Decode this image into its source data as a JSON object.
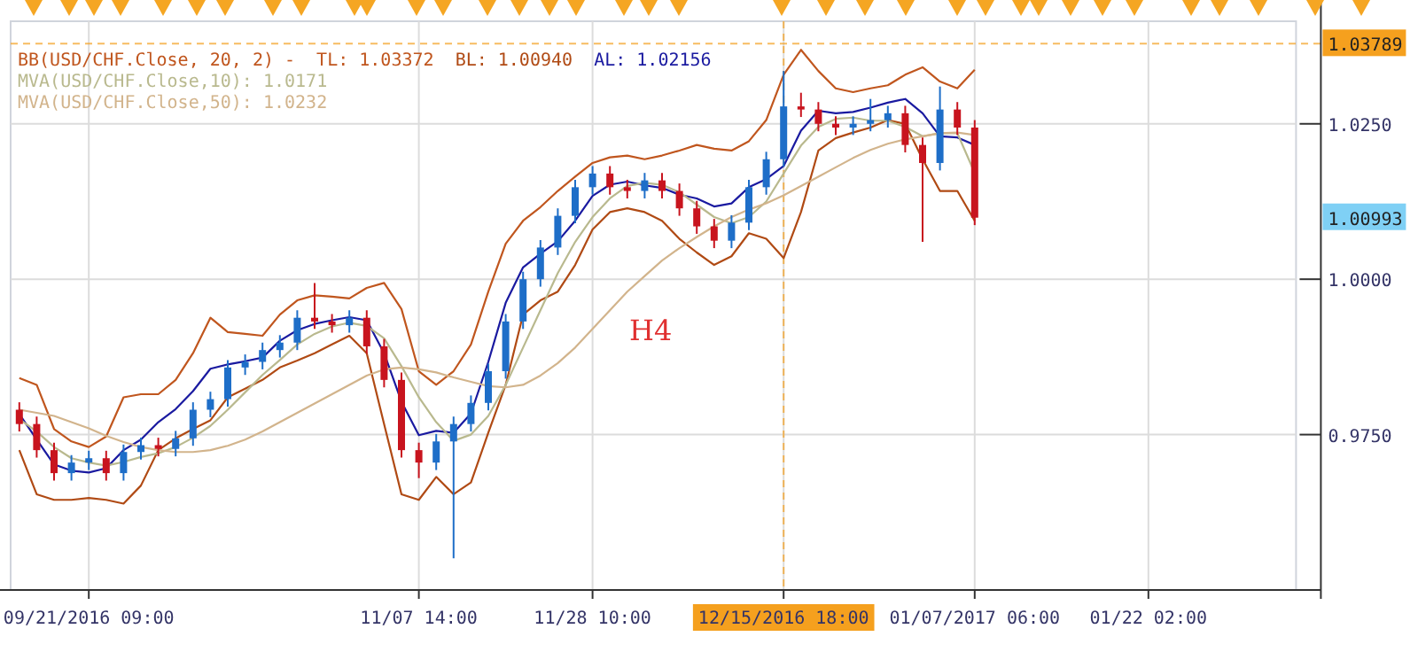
{
  "chart_data": {
    "type": "candlestick",
    "legend_title": "BB(USD/CHF.Close, 20, 2) -",
    "legend": "top left",
    "grid": true,
    "annotations": [
      "H4",
      "1.00993"
    ],
    "categories": [
      null,
      null,
      null,
      null,
      "09/21/2016 09:00",
      null,
      null,
      null,
      null,
      null,
      null,
      null,
      null,
      null,
      null,
      null,
      null,
      null,
      null,
      null,
      null,
      null,
      null,
      "11/07 14:00",
      null,
      null,
      null,
      null,
      null,
      null,
      null,
      null,
      null,
      "11/28 10:00",
      null,
      null,
      null,
      null,
      null,
      null,
      null,
      null,
      null,
      null,
      "12/15/2016 18:00",
      null,
      null,
      null,
      null,
      null,
      null,
      null,
      null,
      null,
      null,
      "01/07/2017 06:00",
      null,
      null,
      null,
      null,
      null,
      null,
      null,
      null,
      null,
      "01/22 02:00",
      null,
      null,
      null,
      null,
      null,
      null,
      null,
      null
    ],
    "ylim": [
      0.95,
      1.0415
    ],
    "yticks": [
      {
        "value": 0.975,
        "label": "0.9750"
      },
      {
        "value": 1,
        "label": "1.0000"
      },
      {
        "value": 1.025,
        "label": "1.0250"
      }
    ],
    "ref_lines": [
      {
        "axis": "x",
        "value": "12/15/2016 18:00",
        "color": "#f5a01e",
        "line_style": "dashed"
      },
      {
        "axis": "y",
        "value": 1.03789,
        "label": "1.03789",
        "color": "#f5a01e",
        "line_style": "dashed"
      }
    ],
    "series": [
      {
        "type": "candlestick",
        "ohlc": [
          [
            0.979,
            0.9802,
            0.9755,
            0.9767
          ],
          [
            0.9767,
            0.9779,
            0.9713,
            0.9725
          ],
          [
            0.9725,
            0.9737,
            0.9676,
            0.9688
          ],
          [
            0.9688,
            0.9717,
            0.9676,
            0.9705
          ],
          [
            0.9705,
            0.9724,
            0.9693,
            0.9712
          ],
          [
            0.9712,
            0.9724,
            0.9676,
            0.9688
          ],
          [
            0.9688,
            0.9734,
            0.9676,
            0.9722
          ],
          [
            0.9722,
            0.9745,
            0.971,
            0.9733
          ],
          [
            0.9733,
            0.9745,
            0.9715,
            0.9727
          ],
          [
            0.9727,
            0.9756,
            0.9715,
            0.9744
          ],
          [
            0.9744,
            0.9802,
            0.9732,
            0.979
          ],
          [
            0.979,
            0.9819,
            0.9778,
            0.9807
          ],
          [
            0.9807,
            0.987,
            0.9795,
            0.9858
          ],
          [
            0.9858,
            0.9879,
            0.9846,
            0.9867
          ],
          [
            0.9867,
            0.9898,
            0.9855,
            0.9886
          ],
          [
            0.9886,
            0.991,
            0.9874,
            0.9898
          ],
          [
            0.9898,
            0.995,
            0.9886,
            0.9938
          ],
          [
            0.9938,
            0.9994,
            0.992,
            0.9932
          ],
          [
            0.9932,
            0.9944,
            0.9914,
            0.9926
          ],
          [
            0.9926,
            0.995,
            0.9914,
            0.9938
          ],
          [
            0.9938,
            0.995,
            0.988,
            0.9892
          ],
          [
            0.9892,
            0.9904,
            0.9826,
            0.9838
          ],
          [
            0.9838,
            0.985,
            0.9713,
            0.9725
          ],
          [
            0.9725,
            0.9737,
            0.968,
            0.9705
          ],
          [
            0.9705,
            0.9751,
            0.9693,
            0.9739
          ],
          [
            0.9739,
            0.9779,
            0.9551,
            0.9767
          ],
          [
            0.9767,
            0.9813,
            0.9755,
            0.9801
          ],
          [
            0.9801,
            0.9864,
            0.9789,
            0.9852
          ],
          [
            0.9852,
            0.9944,
            0.984,
            0.9932
          ],
          [
            0.9932,
            1.0012,
            0.992,
            1.0
          ],
          [
            1.0,
            1.0063,
            0.9988,
            1.0051
          ],
          [
            1.0051,
            1.0114,
            1.0039,
            1.0102
          ],
          [
            1.0102,
            1.016,
            1.009,
            1.0148
          ],
          [
            1.0148,
            1.0182,
            1.0136,
            1.017
          ],
          [
            1.017,
            1.0182,
            1.0136,
            1.0148
          ],
          [
            1.0148,
            1.016,
            1.013,
            1.0142
          ],
          [
            1.0142,
            1.0171,
            1.013,
            1.0159
          ],
          [
            1.0159,
            1.0171,
            1.013,
            1.0142
          ],
          [
            1.0142,
            1.0154,
            1.0102,
            1.0114
          ],
          [
            1.0114,
            1.0126,
            1.0073,
            1.0085
          ],
          [
            1.0085,
            1.0097,
            1.005,
            1.0062
          ],
          [
            1.0062,
            1.0103,
            1.005,
            1.0091
          ],
          [
            1.0091,
            1.016,
            1.0079,
            1.0148
          ],
          [
            1.0148,
            1.0205,
            1.0136,
            1.0193
          ],
          [
            1.0193,
            1.0335,
            1.0181,
            1.0278
          ],
          [
            1.0278,
            1.03,
            1.0261,
            1.0273
          ],
          [
            1.0273,
            1.0285,
            1.0238,
            1.025
          ],
          [
            1.025,
            1.0262,
            1.0232,
            1.0244
          ],
          [
            1.0244,
            1.0262,
            1.0232,
            1.025
          ],
          [
            1.025,
            1.029,
            1.0238,
            1.0256
          ],
          [
            1.0256,
            1.0279,
            1.0244,
            1.0267
          ],
          [
            1.0267,
            1.0279,
            1.0204,
            1.0216
          ],
          [
            1.0216,
            1.0228,
            1.006,
            1.0187
          ],
          [
            1.0187,
            1.031,
            1.0175,
            1.0273
          ],
          [
            1.0273,
            1.0285,
            1.0232,
            1.0244
          ],
          [
            1.0244,
            1.0256,
            1.0087,
            1.0099
          ],
          null,
          null,
          null,
          null,
          null,
          null,
          null,
          null,
          null,
          null,
          null,
          null,
          null,
          null,
          null,
          null,
          null,
          null
        ],
        "colors": [
          "#c8141e",
          "#c8141e",
          "#c8141e",
          "#1e6ec8",
          "#1e6ec8",
          "#c8141e",
          "#1e6ec8",
          "#1e6ec8",
          "#c8141e",
          "#1e6ec8",
          "#1e6ec8",
          "#1e6ec8",
          "#1e6ec8",
          "#1e6ec8",
          "#1e6ec8",
          "#1e6ec8",
          "#1e6ec8",
          "#c8141e",
          "#c8141e",
          "#1e6ec8",
          "#c8141e",
          "#c8141e",
          "#c8141e",
          "#c8141e",
          "#1e6ec8",
          "#1e6ec8",
          "#1e6ec8",
          "#1e6ec8",
          "#1e6ec8",
          "#1e6ec8",
          "#1e6ec8",
          "#1e6ec8",
          "#1e6ec8",
          "#1e6ec8",
          "#c8141e",
          "#c8141e",
          "#1e6ec8",
          "#c8141e",
          "#c8141e",
          "#c8141e",
          "#c8141e",
          "#1e6ec8",
          "#1e6ec8",
          "#1e6ec8",
          "#1e6ec8",
          "#c8141e",
          "#c8141e",
          "#c8141e",
          "#1e6ec8",
          "#1e6ec8",
          "#1e6ec8",
          "#c8141e",
          "#c8141e",
          "#1e6ec8",
          "#c8141e",
          "#c8141e",
          null,
          null,
          null,
          null,
          null,
          null,
          null,
          null,
          null,
          null,
          null,
          null,
          null,
          null,
          null,
          null,
          null,
          null
        ]
      },
      {
        "type": "line",
        "name": "TL: 1.03372",
        "color": "#c0561e",
        "values": [
          0.9841,
          0.983,
          0.9759,
          0.9739,
          0.973,
          0.9747,
          0.981,
          0.9815,
          0.9815,
          0.9838,
          0.9881,
          0.9938,
          0.9915,
          0.9912,
          0.9909,
          0.9943,
          0.9966,
          0.9974,
          0.9972,
          0.9969,
          0.9986,
          0.9994,
          0.9952,
          0.9852,
          0.983,
          0.9852,
          0.9895,
          0.998,
          1.0057,
          1.0094,
          1.0116,
          1.0142,
          1.0165,
          1.0187,
          1.0196,
          1.0199,
          1.0193,
          1.0199,
          1.0207,
          1.0216,
          1.021,
          1.0207,
          1.0222,
          1.0256,
          1.0329,
          1.0369,
          1.0335,
          1.0307,
          1.0301,
          1.0307,
          1.0312,
          1.0329,
          1.0341,
          1.0318,
          1.0307,
          1.0337,
          null,
          null,
          null,
          null,
          null,
          null,
          null,
          null,
          null,
          null,
          null,
          null,
          null,
          null,
          null,
          null,
          null,
          null
        ]
      },
      {
        "type": "line",
        "name": "BL: 1.00940",
        "color": "#b04a14",
        "values": [
          0.9725,
          0.9654,
          0.9645,
          0.9645,
          0.9648,
          0.9645,
          0.9639,
          0.9668,
          0.9725,
          0.9744,
          0.9759,
          0.9773,
          0.981,
          0.9824,
          0.9838,
          0.9858,
          0.9869,
          0.9881,
          0.9895,
          0.9909,
          0.9881,
          0.9767,
          0.9654,
          0.9645,
          0.9682,
          0.9654,
          0.9673,
          0.9753,
          0.983,
          0.9943,
          0.9966,
          0.998,
          1.0023,
          1.008,
          1.0108,
          1.0114,
          1.0108,
          1.0094,
          1.0065,
          1.0043,
          1.0023,
          1.0037,
          1.0074,
          1.0065,
          1.0034,
          1.0108,
          1.0207,
          1.0227,
          1.0236,
          1.0244,
          1.0256,
          1.025,
          1.0193,
          1.0142,
          1.0142,
          1.0094,
          null,
          null,
          null,
          null,
          null,
          null,
          null,
          null,
          null,
          null,
          null,
          null,
          null,
          null,
          null,
          null,
          null,
          null
        ]
      },
      {
        "type": "line",
        "name": "AL: 1.02156",
        "color": "#1a1aa0",
        "values": [
          0.9783,
          0.9742,
          0.9702,
          0.9692,
          0.9689,
          0.9696,
          0.9725,
          0.9742,
          0.977,
          0.9791,
          0.982,
          0.9856,
          0.9863,
          0.9868,
          0.9874,
          0.9901,
          0.9918,
          0.9928,
          0.9934,
          0.9939,
          0.9934,
          0.9881,
          0.9803,
          0.9749,
          0.9756,
          0.9753,
          0.9784,
          0.9867,
          0.9962,
          1.0019,
          1.0041,
          1.0061,
          1.0094,
          1.0134,
          1.0152,
          1.0157,
          1.0151,
          1.0147,
          1.0136,
          1.013,
          1.0117,
          1.0122,
          1.0148,
          1.0161,
          1.0182,
          1.0239,
          1.0271,
          1.0267,
          1.0269,
          1.0276,
          1.0284,
          1.029,
          1.0267,
          1.023,
          1.0228,
          1.0216,
          null,
          null,
          null,
          null,
          null,
          null,
          null,
          null,
          null,
          null,
          null,
          null,
          null,
          null,
          null,
          null,
          null,
          null
        ]
      },
      {
        "type": "line",
        "name": "MVA(USD/CHF.Close,10): 1.0171",
        "color": "#b9b98e",
        "values": [
          0.9775,
          0.9755,
          0.973,
          0.9712,
          0.9705,
          0.97,
          0.9706,
          0.9714,
          0.972,
          0.973,
          0.9745,
          0.9764,
          0.979,
          0.9818,
          0.9846,
          0.987,
          0.9895,
          0.9912,
          0.9924,
          0.993,
          0.9925,
          0.9905,
          0.986,
          0.981,
          0.977,
          0.974,
          0.975,
          0.978,
          0.983,
          0.989,
          0.995,
          1.001,
          1.006,
          1.01,
          1.013,
          1.015,
          1.0155,
          1.0152,
          1.014,
          1.012,
          1.01,
          1.009,
          1.01,
          1.0125,
          1.017,
          1.0215,
          1.0245,
          1.0258,
          1.026,
          1.0255,
          1.0255,
          1.0245,
          1.023,
          1.0235,
          1.0235,
          1.0171,
          null,
          null,
          null,
          null,
          null,
          null,
          null,
          null,
          null,
          null,
          null,
          null,
          null,
          null,
          null,
          null,
          null,
          null
        ]
      },
      {
        "type": "line",
        "name": "MVA(USD/CHF.Close,50): 1.0232",
        "color": "#d2b48c",
        "values": [
          0.979,
          0.9785,
          0.978,
          0.977,
          0.976,
          0.9748,
          0.9738,
          0.973,
          0.9725,
          0.9722,
          0.9722,
          0.9725,
          0.9732,
          0.9742,
          0.9755,
          0.977,
          0.9785,
          0.98,
          0.9815,
          0.983,
          0.9845,
          0.9855,
          0.9858,
          0.9855,
          0.985,
          0.9842,
          0.9835,
          0.9828,
          0.9826,
          0.983,
          0.9845,
          0.9865,
          0.989,
          0.992,
          0.995,
          0.998,
          1.0005,
          1.003,
          1.005,
          1.0068,
          1.0085,
          1.01,
          1.0112,
          1.0122,
          1.0135,
          1.015,
          1.0165,
          1.018,
          1.0195,
          1.0208,
          1.0218,
          1.0225,
          1.023,
          1.0235,
          1.0236,
          1.0232,
          null,
          null,
          null,
          null,
          null,
          null,
          null,
          null,
          null,
          null,
          null,
          null,
          null,
          null,
          null,
          null,
          null,
          null
        ]
      }
    ]
  }
}
